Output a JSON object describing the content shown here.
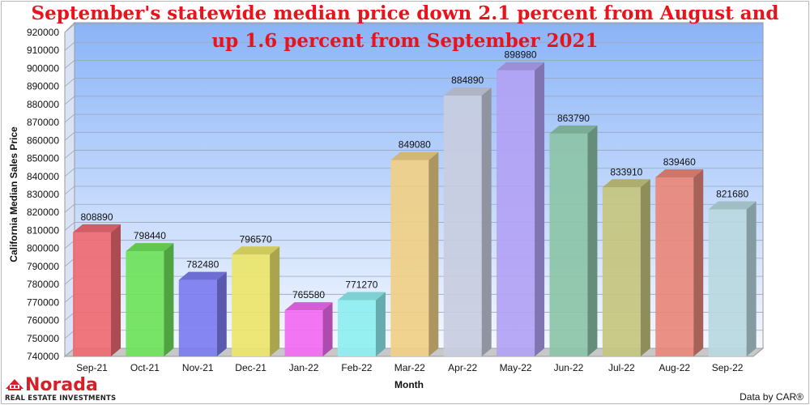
{
  "chart_data": {
    "type": "bar",
    "title_lines": [
      "September's statewide median price down 2.1 percent from August and",
      "up 1.6 percent from September 2021"
    ],
    "xlabel": "Month",
    "ylabel": "California Median Sales Price",
    "categories": [
      "Sep-21",
      "Oct-21",
      "Nov-21",
      "Dec-21",
      "Jan-22",
      "Feb-22",
      "Mar-22",
      "Apr-22",
      "May-22",
      "Jun-22",
      "Jul-22",
      "Aug-22",
      "Sep-22"
    ],
    "values": [
      808890,
      798440,
      782480,
      796570,
      765580,
      771270,
      849080,
      884890,
      898980,
      863790,
      833910,
      839460,
      821680
    ],
    "ylim": [
      740000,
      920000
    ],
    "ytick_step": 10000,
    "yticks": [
      "740000",
      "750000",
      "760000",
      "770000",
      "780000",
      "790000",
      "800000",
      "810000",
      "820000",
      "830000",
      "840000",
      "850000",
      "860000",
      "870000",
      "880000",
      "890000",
      "900000",
      "910000",
      "920000"
    ],
    "grid": true,
    "bar_colors": [
      "#ef6a72",
      "#6ee25a",
      "#7c7cf0",
      "#ece56a",
      "#f26af2",
      "#8eeef0",
      "#f0cf86",
      "#c8cde0",
      "#b2a2f4",
      "#8cc4a8",
      "#c6c57e",
      "#e9877a",
      "#b8d8e0"
    ],
    "plot_background_top": "#8ab4f8",
    "plot_background_bottom": "#f4f8ff"
  },
  "branding": {
    "logo_word": "Norada",
    "logo_subtitle": "REAL ESTATE INVESTMENTS",
    "logo_icon": "house-logo-icon",
    "credit": "Data by CAR®"
  }
}
